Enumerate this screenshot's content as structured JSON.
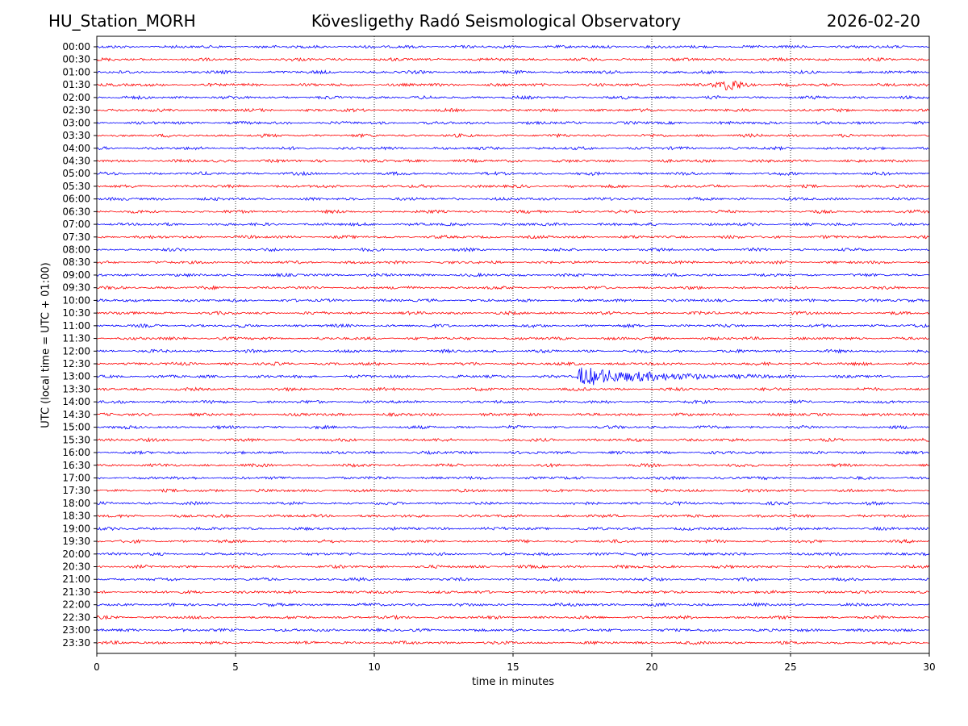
{
  "header": {
    "station": "HU_Station_MORH",
    "observatory": "Kövesligethy Radó Seismological Observatory",
    "date": "2026-02-20"
  },
  "chart_data": {
    "type": "line",
    "title": "Kövesligethy Radó Seismological Observatory",
    "xlabel": "time in minutes",
    "ylabel": "UTC (local time = UTC + 01:00)",
    "xlim": [
      0,
      30
    ],
    "xticks": [
      0,
      5,
      10,
      15,
      20,
      25,
      30
    ],
    "grid": "vertical dotted at x ticks",
    "colors": {
      "even_rows": "#0000ff",
      "odd_rows": "#ff0000",
      "axis": "#000000"
    },
    "rows": [
      "00:00",
      "00:30",
      "01:00",
      "01:30",
      "02:00",
      "02:30",
      "03:00",
      "03:30",
      "04:00",
      "04:30",
      "05:00",
      "05:30",
      "06:00",
      "06:30",
      "07:00",
      "07:30",
      "08:00",
      "08:30",
      "09:00",
      "09:30",
      "10:00",
      "10:30",
      "11:00",
      "11:30",
      "12:00",
      "12:30",
      "13:00",
      "13:30",
      "14:00",
      "14:30",
      "15:00",
      "15:30",
      "16:00",
      "16:30",
      "17:00",
      "17:30",
      "18:00",
      "18:30",
      "19:00",
      "19:30",
      "20:00",
      "20:30",
      "21:00",
      "21:30",
      "22:00",
      "22:30",
      "23:00",
      "23:30"
    ],
    "events": [
      {
        "row": "01:30",
        "start_min": 22.0,
        "peak_min": 22.9,
        "end_min": 24.0,
        "amplitude": 2.6
      },
      {
        "row": "13:00",
        "start_min": 17.3,
        "peak_min": 17.4,
        "end_min": 24.5,
        "amplitude": 4.2
      }
    ]
  }
}
